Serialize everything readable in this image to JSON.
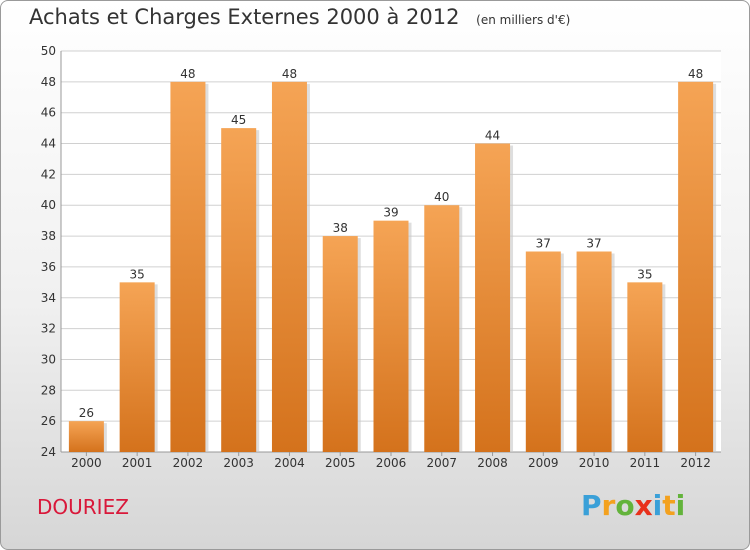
{
  "header": {
    "title": "Achats et Charges Externes 2000 à 2012",
    "subtitle": "(en milliers d'€)"
  },
  "footer": {
    "commune": "DOURIEZ",
    "logo": {
      "letters": [
        "P",
        "r",
        "o",
        "x",
        "i",
        "t",
        "i"
      ],
      "colors": [
        "#3aa0d8",
        "#f3a11e",
        "#63b33b",
        "#e8311c",
        "#3aa0d8",
        "#f3a11e",
        "#63b33b"
      ]
    }
  },
  "colors": {
    "bar_top": "#f5a455",
    "bar_bottom": "#d4721c",
    "grid": "#d0d0d0",
    "title": "#333333",
    "commune": "#d9183a"
  },
  "chart_data": {
    "type": "bar",
    "title": "Achats et Charges Externes 2000 à 2012",
    "subtitle": "(en milliers d'€)",
    "xlabel": "",
    "ylabel": "",
    "categories": [
      "2000",
      "2001",
      "2002",
      "2003",
      "2004",
      "2005",
      "2006",
      "2007",
      "2008",
      "2009",
      "2010",
      "2011",
      "2012"
    ],
    "values": [
      26,
      35,
      48,
      45,
      48,
      38,
      39,
      40,
      44,
      37,
      37,
      35,
      48
    ],
    "ylim": [
      24,
      50
    ],
    "yticks": [
      24,
      26,
      28,
      30,
      32,
      34,
      36,
      38,
      40,
      42,
      44,
      46,
      48,
      50
    ],
    "grid": true,
    "legend": "none"
  }
}
